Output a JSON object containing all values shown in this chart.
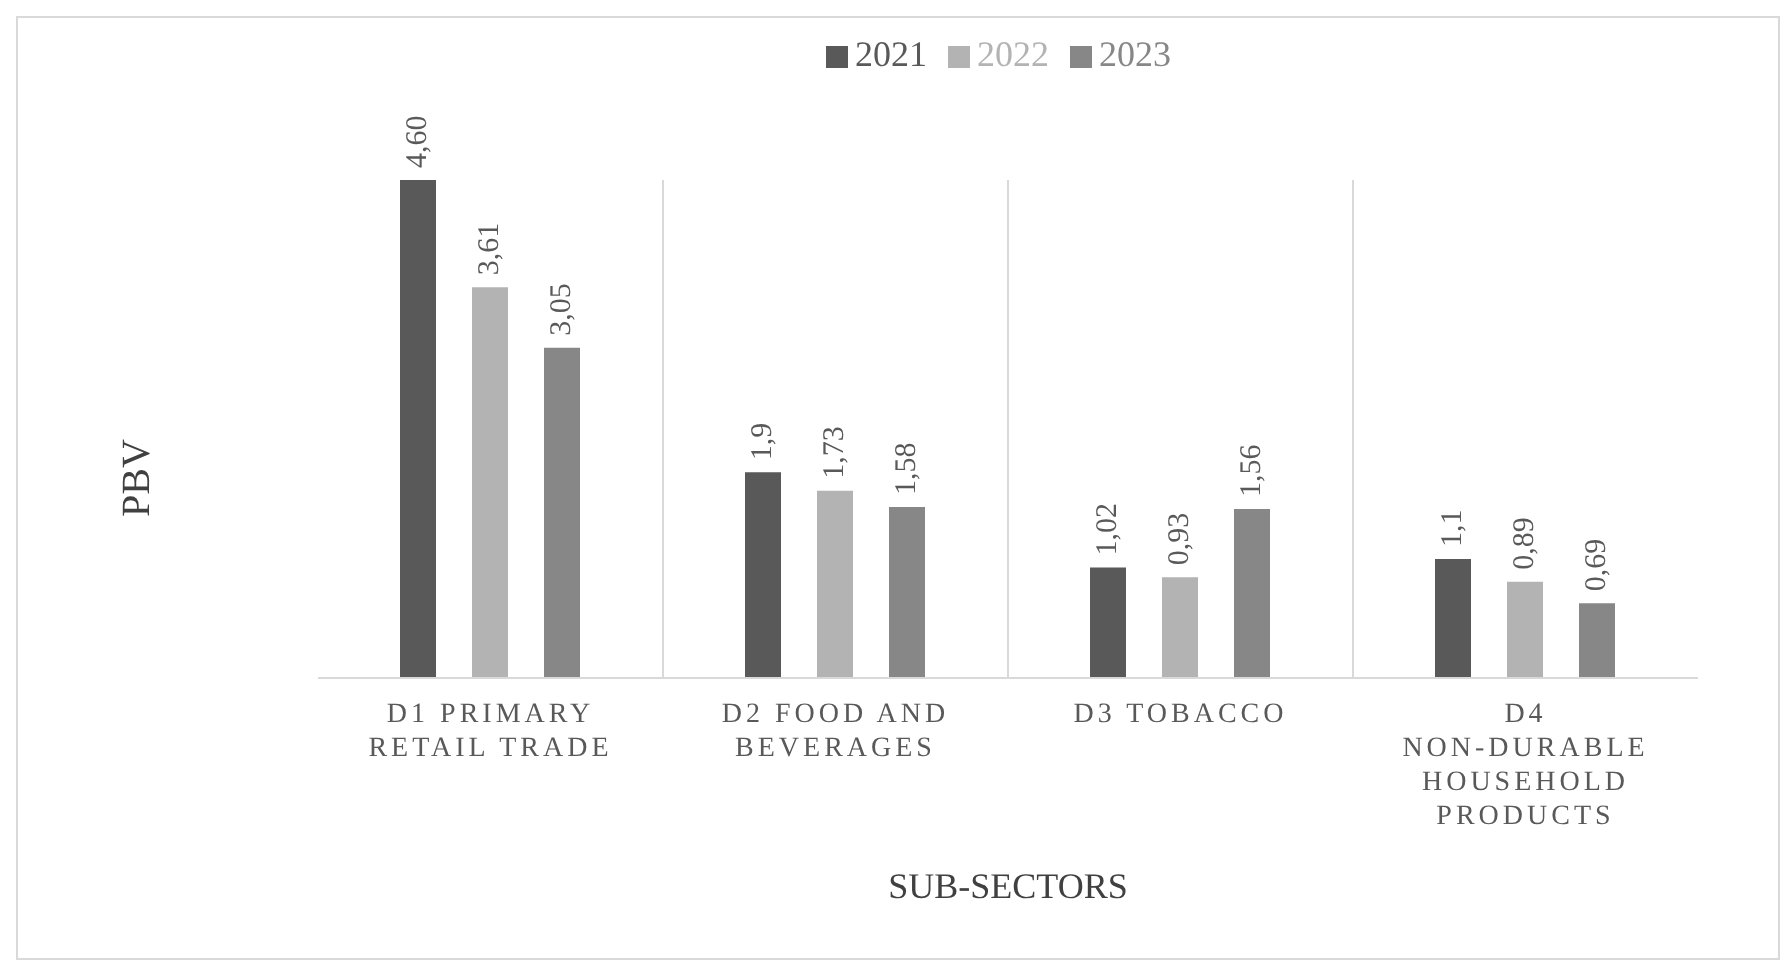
{
  "chart_data": {
    "type": "bar",
    "xlabel": "SUB-SECTORS",
    "ylabel": "PBV",
    "categories": [
      "D1 PRIMARY RETAIL TRADE",
      "D2 FOOD AND BEVERAGES",
      "D3 TOBACCO",
      "D4 NON-DURABLE HOUSEHOLD PRODUCTS"
    ],
    "series": [
      {
        "name": "2021",
        "color": "#595959",
        "values": [
          4.6,
          1.9,
          1.02,
          1.1
        ],
        "value_labels": [
          "4,60",
          "1,9",
          "1,02",
          "1,1"
        ]
      },
      {
        "name": "2022",
        "color": "#b3b3b3",
        "values": [
          3.61,
          1.73,
          0.93,
          0.89
        ],
        "value_labels": [
          "3,61",
          "1,73",
          "0,93",
          "0,89"
        ]
      },
      {
        "name": "2023",
        "color": "#878787",
        "values": [
          3.05,
          1.58,
          1.56,
          0.69
        ],
        "value_labels": [
          "3,05",
          "1,58",
          "1,56",
          "0,69"
        ]
      }
    ],
    "grid": "x",
    "legend": "top"
  }
}
